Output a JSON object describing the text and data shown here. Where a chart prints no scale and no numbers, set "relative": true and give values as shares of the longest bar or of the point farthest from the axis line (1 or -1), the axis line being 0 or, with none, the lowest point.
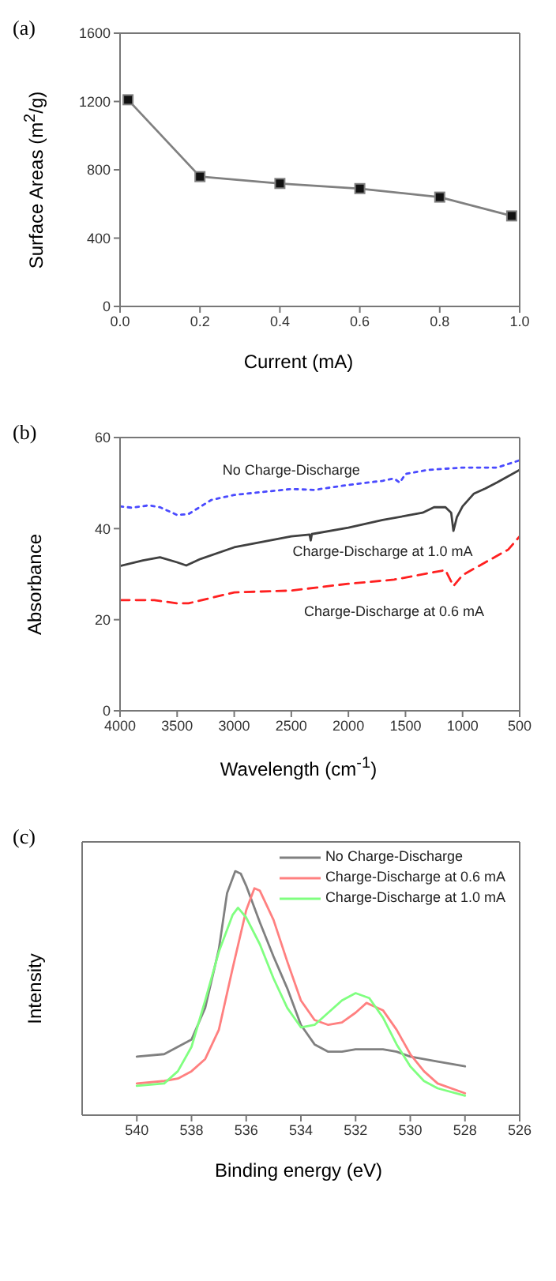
{
  "chart_data": [
    {
      "type": "line",
      "title": "(a)",
      "xlabel": "Current (mA)",
      "ylabel": "Surface Areas (m$^{2}$/g)",
      "x": [
        0.02,
        0.2,
        0.4,
        0.6,
        0.8,
        0.98
      ],
      "xlim": [
        0,
        1
      ],
      "xticks": [
        {
          "value": 0,
          "label": "0.0"
        },
        0.2,
        0.4,
        0.6,
        0.8,
        {
          "value": 1,
          "label": "1.0"
        }
      ],
      "ylim": [
        0,
        1600
      ],
      "yticks": [
        0,
        400,
        800,
        1200,
        1600
      ],
      "marker": "square",
      "grid": false,
      "legend": false,
      "series": [
        {
          "color": "#808080",
          "values": [
            1210,
            760,
            720,
            690,
            640,
            530
          ]
        }
      ]
    },
    {
      "type": "line",
      "title": "(b)",
      "xlabel": "Wavelength (cm$^{-1}$)",
      "ylabel": "Absorbance",
      "xlim": [
        4000,
        500
      ],
      "xticks": [
        4000,
        3500,
        3000,
        2500,
        2000,
        1500,
        1000,
        500
      ],
      "ylim": [
        0,
        60
      ],
      "yticks": [
        0,
        20,
        40,
        60
      ],
      "grid": false,
      "legend": false,
      "series": [
        {
          "name": "No Charge-Discharge",
          "color": "#4a4aff",
          "line_style": "dotted",
          "x": [
            4000,
            3900,
            3750,
            3650,
            3500,
            3400,
            3200,
            3000,
            2500,
            2300,
            2000,
            1700,
            1600,
            1550,
            1500,
            1300,
            1000,
            700,
            500
          ],
          "values": [
            44.9,
            44.6,
            45.1,
            44.7,
            43,
            43.2,
            46.3,
            47.4,
            48.7,
            48.5,
            49.6,
            50.5,
            51,
            50.1,
            52,
            52.9,
            53.4,
            53.4,
            55
          ]
        },
        {
          "name": "Charge-Discharge at 1.0 mA",
          "color": "#404040",
          "line_style": "solid",
          "x": [
            4000,
            3800,
            3650,
            3500,
            3420,
            3300,
            3000,
            2500,
            2340,
            2330,
            2320,
            2000,
            1700,
            1500,
            1350,
            1250,
            1150,
            1100,
            1080,
            1050,
            1000,
            900,
            800,
            700,
            600,
            500
          ],
          "values": [
            31.8,
            33,
            33.7,
            32.6,
            31.9,
            33.3,
            35.9,
            38.3,
            38.7,
            37.4,
            38.8,
            40.2,
            41.9,
            42.8,
            43.5,
            44.7,
            44.7,
            43.5,
            39.5,
            42.5,
            44.9,
            47.7,
            48.8,
            50.1,
            51.5,
            52.9
          ]
        },
        {
          "name": "Charge-Discharge at 0.6 mA",
          "color": "#ff2020",
          "line_style": "dashed",
          "x": [
            4000,
            3700,
            3500,
            3400,
            3000,
            2500,
            2000,
            1600,
            1300,
            1150,
            1080,
            1000,
            800,
            600,
            500
          ],
          "values": [
            24.3,
            24.3,
            23.6,
            23.6,
            26,
            26.4,
            27.9,
            28.8,
            30.2,
            30.9,
            27.4,
            29.8,
            32.6,
            35.4,
            38.3
          ]
        }
      ]
    },
    {
      "type": "line",
      "title": "(c)",
      "xlabel": "Binding energy (eV)",
      "ylabel": "Intensity",
      "relative": true,
      "xlim": [
        542,
        526
      ],
      "xticks": [
        540,
        538,
        536,
        534,
        532,
        530,
        528,
        526
      ],
      "grid": false,
      "legend": "top right",
      "series": [
        {
          "name": "No Charge-Discharge",
          "color": "#808080",
          "x": [
            540,
            539,
            538,
            537.5,
            537,
            536.7,
            536.4,
            536.2,
            536,
            535.5,
            535,
            534.5,
            534,
            533.5,
            533,
            532.5,
            532,
            531.5,
            531,
            530.5,
            530,
            529,
            528
          ],
          "values": [
            0.24,
            0.25,
            0.31,
            0.44,
            0.68,
            0.91,
            1,
            0.99,
            0.94,
            0.79,
            0.65,
            0.52,
            0.37,
            0.29,
            0.26,
            0.26,
            0.27,
            0.27,
            0.27,
            0.26,
            0.24,
            0.22,
            0.2
          ]
        },
        {
          "name": "Charge-Discharge at 0.6 mA",
          "color": "#ff8080",
          "x": [
            540,
            539,
            538.5,
            538,
            537.5,
            537,
            536.5,
            536,
            535.7,
            535.5,
            535,
            534.5,
            534,
            533.5,
            533,
            532.5,
            532,
            531.6,
            531,
            530.5,
            530,
            529.5,
            529,
            528
          ],
          "values": [
            0.13,
            0.14,
            0.15,
            0.18,
            0.23,
            0.35,
            0.6,
            0.84,
            0.93,
            0.92,
            0.8,
            0.63,
            0.47,
            0.39,
            0.37,
            0.38,
            0.42,
            0.46,
            0.43,
            0.35,
            0.25,
            0.18,
            0.13,
            0.09
          ]
        },
        {
          "name": "Charge-Discharge at 1.0 mA",
          "color": "#80ff80",
          "x": [
            540,
            539,
            538.5,
            538,
            537.5,
            537,
            536.5,
            536.3,
            536,
            535.5,
            535,
            534.5,
            534,
            533.5,
            533,
            532.5,
            532,
            531.5,
            531,
            530.5,
            530,
            529.5,
            529,
            528
          ],
          "values": [
            0.12,
            0.13,
            0.18,
            0.28,
            0.47,
            0.67,
            0.82,
            0.85,
            0.81,
            0.7,
            0.56,
            0.44,
            0.36,
            0.37,
            0.42,
            0.47,
            0.5,
            0.48,
            0.4,
            0.29,
            0.2,
            0.14,
            0.11,
            0.08
          ]
        }
      ]
    }
  ]
}
